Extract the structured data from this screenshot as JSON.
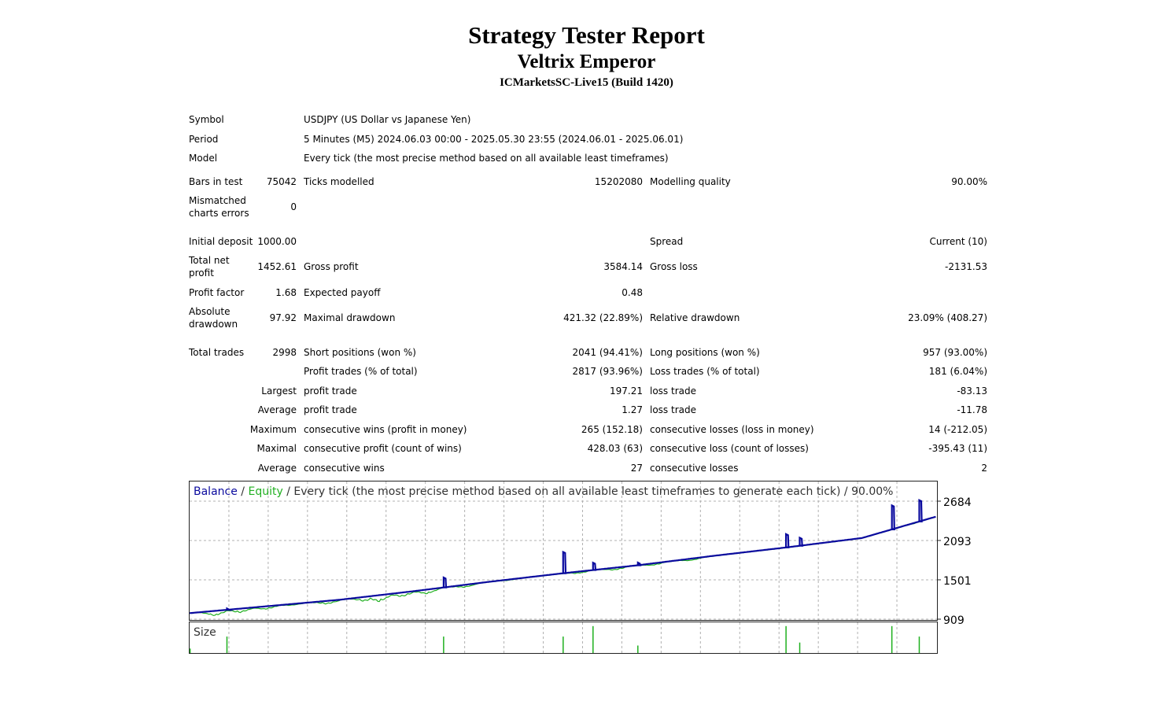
{
  "report": {
    "title": "Strategy Tester Report",
    "expert": "Veltrix Emperor",
    "server": "ICMarketsSC-Live15 (Build 1420)"
  },
  "info": {
    "symbol_label": "Symbol",
    "symbol": "USDJPY (US Dollar vs Japanese Yen)",
    "period_label": "Period",
    "period": "5 Minutes (M5) 2024.06.03 00:00 - 2025.05.30 23:55 (2024.06.01 - 2025.06.01)",
    "model_label": "Model",
    "model": "Every tick (the most precise method based on all available least timeframes)",
    "bars_label": "Bars in test",
    "bars": "75042",
    "ticks_label": "Ticks modelled",
    "ticks": "15202080",
    "quality_label": "Modelling quality",
    "quality": "90.00%",
    "mismatch_label_1": "Mismatched",
    "mismatch_label_2": "charts errors",
    "mismatch": "0"
  },
  "stats": {
    "initial_deposit_label": "Initial deposit",
    "initial_deposit": "1000.00",
    "spread_label": "Spread",
    "spread": "Current (10)",
    "net_profit_label_1": "Total net",
    "net_profit_label_2": "profit",
    "net_profit": "1452.61",
    "gross_profit_label": "Gross profit",
    "gross_profit": "3584.14",
    "gross_loss_label": "Gross loss",
    "gross_loss": "-2131.53",
    "profit_factor_label": "Profit factor",
    "profit_factor": "1.68",
    "expected_payoff_label": "Expected payoff",
    "expected_payoff": "0.48",
    "abs_dd_label_1": "Absolute",
    "abs_dd_label_2": "drawdown",
    "abs_dd": "97.92",
    "max_dd_label": "Maximal drawdown",
    "max_dd": "421.32 (22.89%)",
    "rel_dd_label": "Relative drawdown",
    "rel_dd": "23.09% (408.27)",
    "total_trades_label": "Total trades",
    "total_trades": "2998",
    "short_label": "Short positions (won %)",
    "short": "2041 (94.41%)",
    "long_label": "Long positions (won %)",
    "long": "957 (93.00%)",
    "profit_trades_label": "Profit trades (% of total)",
    "profit_trades": "2817 (93.96%)",
    "loss_trades_label": "Loss trades (% of total)",
    "loss_trades": "181 (6.04%)",
    "largest_label": "Largest",
    "largest_profit_label": "profit trade",
    "largest_profit": "197.21",
    "largest_loss_label": "loss trade",
    "largest_loss": "-83.13",
    "average_label": "Average",
    "average_profit_label": "profit trade",
    "average_profit": "1.27",
    "average_loss_label": "loss trade",
    "average_loss": "-11.78",
    "maximum_label": "Maximum",
    "max_cons_wins_label": "consecutive wins (profit in money)",
    "max_cons_wins": "265 (152.18)",
    "max_cons_losses_label": "consecutive losses (loss in money)",
    "max_cons_losses": "14 (-212.05)",
    "maximal_label": "Maximal",
    "maximal_cons_profit_label": "consecutive profit (count of wins)",
    "maximal_cons_profit": "428.03 (63)",
    "maximal_cons_loss_label": "consecutive loss (count of losses)",
    "maximal_cons_loss": "-395.43 (11)",
    "average2_label": "Average",
    "avg_cons_wins_label": "consecutive wins",
    "avg_cons_wins": "27",
    "avg_cons_losses_label": "consecutive losses",
    "avg_cons_losses": "2"
  },
  "chart_data": {
    "type": "line",
    "legend": {
      "balance": "Balance",
      "sep1": " / ",
      "equity": "Equity",
      "rest": " / Every tick (the most precise method based on all available least timeframes to generate each tick) / 90.00%"
    },
    "size_label": "Size",
    "colors": {
      "balance": "#0a0a9e",
      "equity": "#22b022",
      "size": "#1fb01f",
      "grid": "#b0b0b0"
    },
    "ylim": [
      909,
      2684
    ],
    "yticks": [
      "2684",
      "2093",
      "1501",
      "909"
    ],
    "grid": true,
    "trades_range": [
      0,
      2998
    ],
    "balance": [
      [
        0,
        1000
      ],
      [
        300,
        1100
      ],
      [
        600,
        1200
      ],
      [
        900,
        1330
      ],
      [
        1200,
        1470
      ],
      [
        1500,
        1600
      ],
      [
        1800,
        1720
      ],
      [
        2100,
        1860
      ],
      [
        2400,
        1990
      ],
      [
        2700,
        2130
      ],
      [
        2998,
        2452
      ]
    ],
    "equity_dips": [
      [
        100,
        960
      ],
      [
        200,
        1010
      ],
      [
        300,
        1060
      ],
      [
        400,
        1120
      ],
      [
        550,
        1140
      ],
      [
        700,
        1180
      ],
      [
        760,
        1170
      ],
      [
        850,
        1250
      ],
      [
        950,
        1290
      ],
      [
        1100,
        1390
      ],
      [
        1250,
        1490
      ],
      [
        1450,
        1590
      ],
      [
        1550,
        1600
      ],
      [
        1700,
        1650
      ],
      [
        1850,
        1720
      ],
      [
        2000,
        1790
      ],
      [
        2380,
        2130
      ],
      [
        2470,
        2150
      ],
      [
        2670,
        2220
      ],
      [
        2870,
        2340
      ]
    ],
    "balance_spikes": [
      [
        150,
        1080,
        20
      ],
      [
        1020,
        1400,
        150
      ],
      [
        1500,
        1820,
        320
      ],
      [
        1620,
        1720,
        110
      ],
      [
        1800,
        1740,
        40
      ],
      [
        2395,
        2170,
        200
      ],
      [
        2450,
        2200,
        120
      ],
      [
        2820,
        2410,
        360
      ],
      [
        2930,
        2450,
        320
      ]
    ],
    "size_bars": [
      [
        2,
        0.15
      ],
      [
        150,
        0.55
      ],
      [
        1020,
        0.55
      ],
      [
        1500,
        0.55
      ],
      [
        1620,
        0.9
      ],
      [
        1800,
        0.25
      ],
      [
        2395,
        0.9
      ],
      [
        2450,
        0.35
      ],
      [
        2820,
        0.9
      ],
      [
        2930,
        0.55
      ]
    ]
  }
}
